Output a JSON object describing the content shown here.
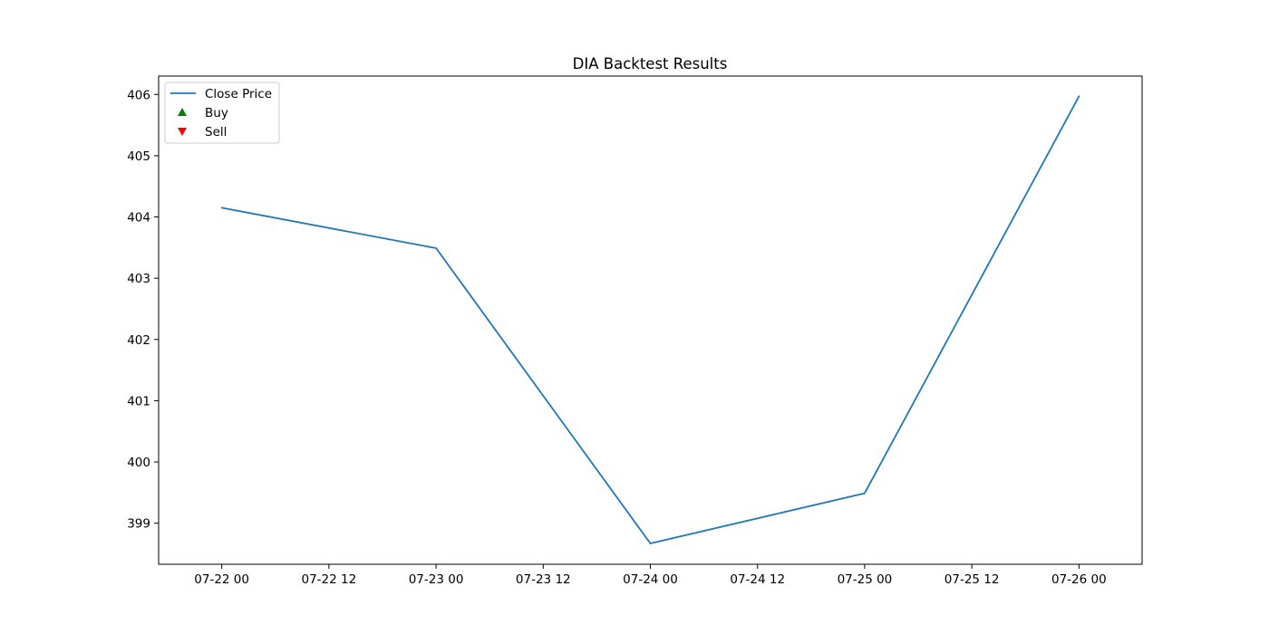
{
  "chart_data": {
    "type": "line",
    "title": "DIA Backtest Results",
    "xlabel": "",
    "ylabel": "",
    "x": [
      "07-22 00",
      "07-23 00",
      "07-24 00",
      "07-25 00",
      "07-26 00"
    ],
    "series": [
      {
        "name": "Close Price",
        "color": "#1f77b4",
        "x_hours": [
          0,
          24,
          48,
          72,
          96
        ],
        "values": [
          404.15,
          403.49,
          398.67,
          399.49,
          405.97
        ]
      }
    ],
    "markers": [
      {
        "name": "Buy",
        "color": "#008000",
        "shape": "triangle-up",
        "points": []
      },
      {
        "name": "Sell",
        "color": "#ff0000",
        "shape": "triangle-down",
        "points": []
      }
    ],
    "x_ticks": [
      "07-22 00",
      "07-22 12",
      "07-23 00",
      "07-23 12",
      "07-24 00",
      "07-24 12",
      "07-25 00",
      "07-25 12",
      "07-26 00"
    ],
    "y_ticks": [
      399,
      400,
      401,
      402,
      403,
      404,
      405,
      406
    ],
    "xlim_hours": [
      -7.07,
      103.07
    ],
    "ylim": [
      398.33,
      406.3
    ],
    "grid": false,
    "legend_position": "upper left"
  }
}
